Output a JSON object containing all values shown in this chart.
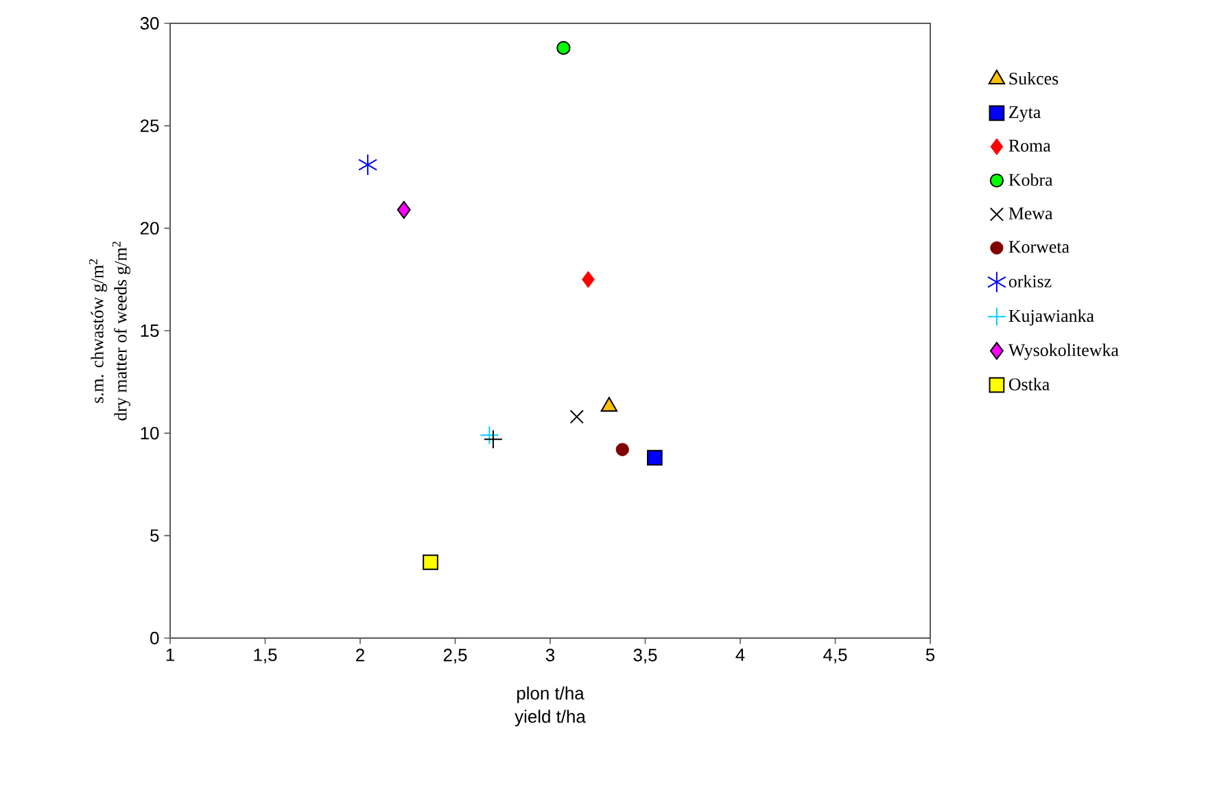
{
  "chart_data": {
    "type": "scatter",
    "xlabel": [
      "plon t/ha",
      "yield t/ha"
    ],
    "ylabel": [
      "s.m. chwastów g/m$^{2}$",
      "dry matter of weeds g/m$^{2}$"
    ],
    "xlim": [
      1,
      5
    ],
    "ylim": [
      0,
      30
    ],
    "xticks": [
      1,
      {
        "value": 1.5,
        "label": "1,5"
      },
      2,
      {
        "value": 2.5,
        "label": "2,5"
      },
      3,
      {
        "value": 3.5,
        "label": "3,5"
      },
      4,
      {
        "value": 4.5,
        "label": "4,5"
      },
      5
    ],
    "yticks": [
      0,
      5,
      10,
      15,
      20,
      25,
      30
    ],
    "legend": "right",
    "grid": false,
    "series": [
      {
        "name": "Sukces",
        "color": "#ffc000",
        "marker": "triangle",
        "x": [
          3.31
        ],
        "values": [
          11.3
        ]
      },
      {
        "name": "Zyta",
        "color": "#0000ff",
        "marker": "square",
        "x": [
          3.55
        ],
        "values": [
          8.8
        ]
      },
      {
        "name": "Roma",
        "color": "#ff0000",
        "marker": "diamond",
        "x": [
          3.2
        ],
        "values": [
          17.5
        ]
      },
      {
        "name": "Kobra",
        "color": "#00ff00",
        "marker": "circle",
        "x": [
          3.07
        ],
        "values": [
          28.8
        ]
      },
      {
        "name": "Mewa",
        "color": "#000000",
        "marker": "cross",
        "x": [
          3.14
        ],
        "values": [
          10.8
        ]
      },
      {
        "name": "Korweta",
        "color": "#800000",
        "marker": "circle",
        "x": [
          3.38
        ],
        "values": [
          9.2
        ]
      },
      {
        "name": "orkisz",
        "color": "#0000ff",
        "x": [
          2.04
        ],
        "values": [
          23.1
        ]
      },
      {
        "name": "Kujawianka",
        "color": "#00ccff",
        "marker": "plus",
        "x": [
          2.68
        ],
        "values": [
          9.9
        ]
      },
      {
        "name": "Wysokolitewka",
        "color": "#ff00ff",
        "marker": "diamond",
        "x": [
          2.23
        ],
        "values": [
          20.9
        ]
      },
      {
        "name": "Ostka",
        "color": "#ffff00",
        "marker": "square",
        "x": [
          2.37
        ],
        "values": [
          3.7
        ]
      },
      {
        "color": "#000000",
        "marker": "plus",
        "x": [
          2.7
        ],
        "values": [
          9.7
        ]
      }
    ]
  }
}
